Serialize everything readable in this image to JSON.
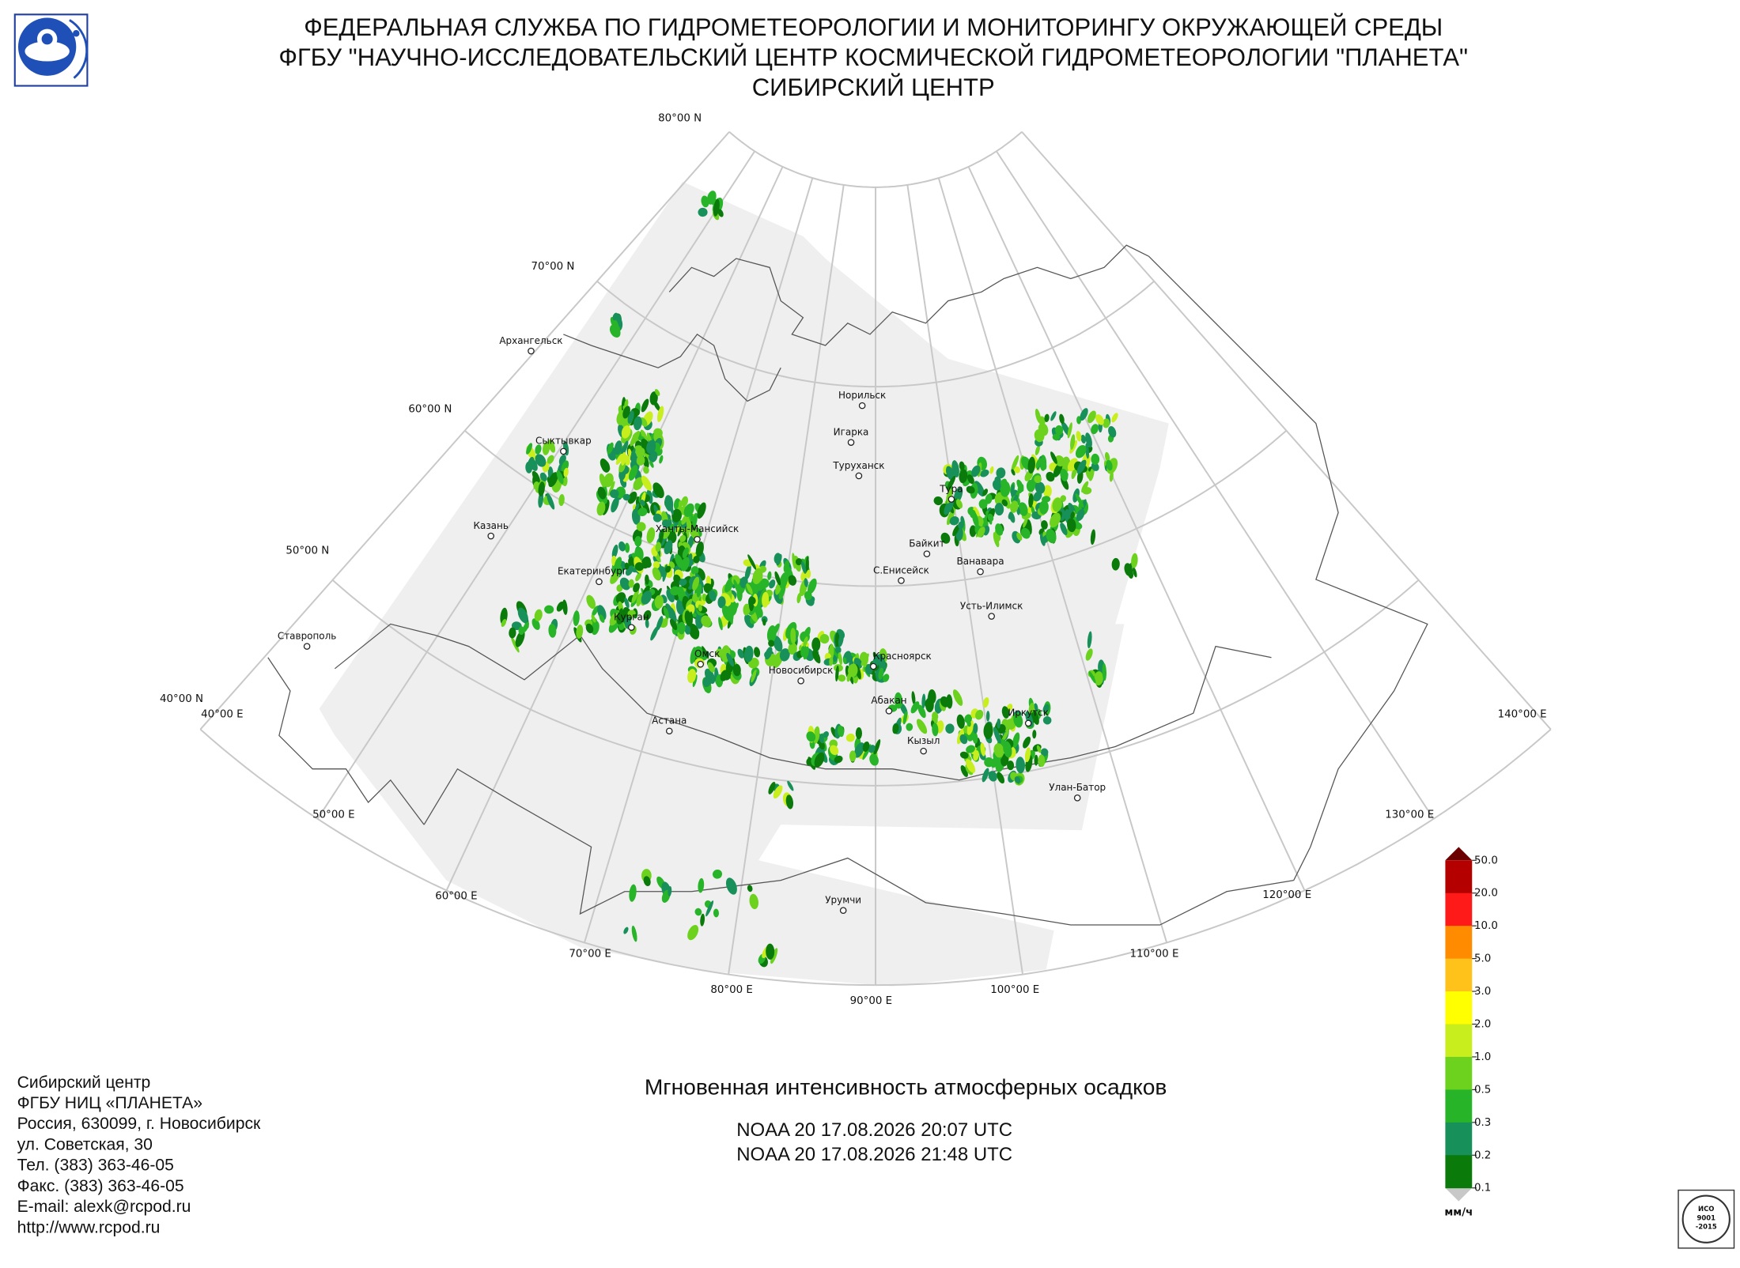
{
  "header": {
    "lines": [
      "ФЕДЕРАЛЬНАЯ СЛУЖБА ПО ГИДРОМЕТЕОРОЛОГИИ И МОНИТОРИНГУ ОКРУЖАЮЩЕЙ СРЕДЫ",
      "ФГБУ \"НАУЧНО-ИССЛЕДОВАТЕЛЬСКИЙ ЦЕНТР КОСМИЧЕСКОЙ ГИДРОМЕТЕОРОЛОГИИ \"ПЛАНЕТА\"",
      "СИБИРСКИЙ ЦЕНТР"
    ]
  },
  "map": {
    "latitude_labels": [
      "80°00 N",
      "70°00 N",
      "60°00 N",
      "50°00 N",
      "40°00 N"
    ],
    "longitude_labels": [
      "40°00 E",
      "50°00 E",
      "60°00 E",
      "70°00 E",
      "80°00 E",
      "90°00 E",
      "100°00 E",
      "110°00 E",
      "120°00 E",
      "130°00 E",
      "140°00 E"
    ],
    "cities": [
      "Архангельск",
      "Сыктывкар",
      "Казань",
      "Ставрополь",
      "Екатеринбург",
      "Ханты-Мансийск",
      "Курган",
      "Омск",
      "Астана",
      "Новосибирск",
      "Красноярск",
      "Абакан",
      "Кызыл",
      "Иркутск",
      "Улан-Батор",
      "Урумчи",
      "Норильск",
      "Игарка",
      "Туруханск",
      "Тура",
      "Байкит",
      "Ванавара",
      "С.Енисейск",
      "Усть-Илимск"
    ]
  },
  "legend": {
    "levels": [
      "50.0",
      "20.0",
      "10.0",
      "5.0",
      "3.0",
      "2.0",
      "1.0",
      "0.5",
      "0.3",
      "0.2",
      "0.1"
    ],
    "colors": [
      "#b50000",
      "#ff1a1a",
      "#ff8c00",
      "#ffc21a",
      "#ffff00",
      "#c8ee1e",
      "#6cd21e",
      "#28b428",
      "#17905a",
      "#0a7a0a"
    ],
    "over_color": "#6b0000",
    "under_color": "#c8c8c8",
    "unit": "мм/ч"
  },
  "product": {
    "title": "Мгновенная интенсивность атмосферных осадков",
    "passes": [
      "NOAA 20 17.08.2026  20:07 UTC",
      "NOAA 20 17.08.2026  21:48 UTC"
    ]
  },
  "contacts": [
    "Сибирский центр",
    "ФГБУ НИЦ «ПЛАНЕТА»",
    "Россия, 630099, г. Новосибирск",
    "ул. Советская, 30",
    "Тел. (383) 363-46-05",
    "Факс. (383) 363-46-05",
    "E-mail: alexk@rcpod.ru",
    "http://www.rcpod.ru"
  ],
  "iso_badge": [
    "ИСО",
    "9001",
    "-2015"
  ]
}
